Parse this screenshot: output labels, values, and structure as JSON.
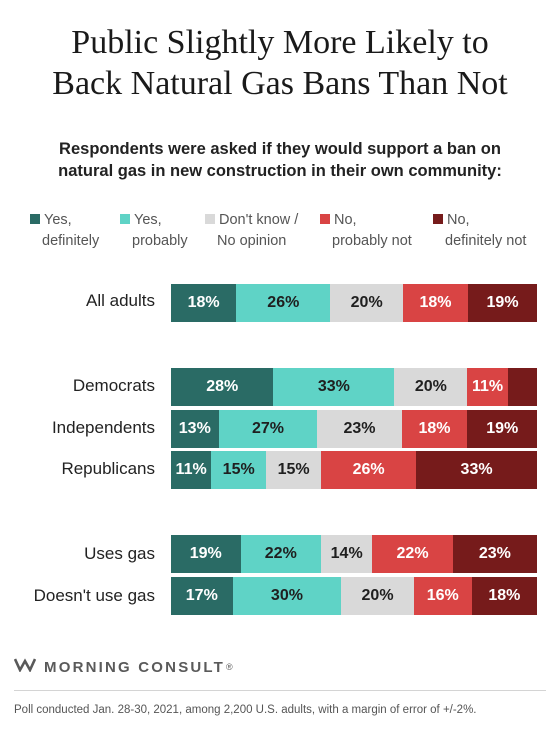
{
  "title_line1": "Public Slightly More Likely to",
  "title_line2": "Back Natural Gas Bans Than Not",
  "subtitle_line1": "Respondents were asked if they would support a ban on",
  "subtitle_line2": "natural gas in new construction in their own community:",
  "legend": [
    {
      "line1": "Yes,",
      "line2": "definitely",
      "color": "#2a6b65"
    },
    {
      "line1": "Yes,",
      "line2": "probably",
      "color": "#5fd3c6"
    },
    {
      "line1": "Don't know /",
      "line2": "No opinion",
      "color": "#d9d9d9"
    },
    {
      "line1": "No,",
      "line2": "probably not",
      "color": "#d94444"
    },
    {
      "line1": "No,",
      "line2": "definitely not",
      "color": "#761b1b"
    }
  ],
  "chart_data": {
    "type": "bar",
    "orientation": "horizontal",
    "stacked": true,
    "unit": "%",
    "categories": [
      "All adults",
      "Democrats",
      "Independents",
      "Republicans",
      "Uses gas",
      "Doesn't use gas"
    ],
    "series": [
      {
        "name": "Yes, definitely",
        "color": "#2a6b65",
        "label_color": "#ffffff",
        "values": [
          18,
          28,
          13,
          11,
          19,
          17
        ]
      },
      {
        "name": "Yes, probably",
        "color": "#5fd3c6",
        "label_color": "#1f1f1f",
        "values": [
          26,
          33,
          27,
          15,
          22,
          30
        ]
      },
      {
        "name": "Don't know / No opinion",
        "color": "#d9d9d9",
        "label_color": "#1f1f1f",
        "values": [
          20,
          20,
          23,
          15,
          14,
          20
        ]
      },
      {
        "name": "No, probably not",
        "color": "#d94444",
        "label_color": "#ffffff",
        "values": [
          18,
          11,
          18,
          26,
          22,
          16
        ]
      },
      {
        "name": "No, definitely not",
        "color": "#761b1b",
        "label_color": "#ffffff",
        "values": [
          19,
          8,
          19,
          33,
          23,
          18
        ]
      }
    ],
    "hidden_labels": [
      [
        1,
        4
      ]
    ]
  },
  "brand": "MORNING CONSULT",
  "brand_mark": "®",
  "footnote": "Poll conducted Jan. 28-30, 2021, among 2,200 U.S. adults, with a margin of error of +/-2%."
}
